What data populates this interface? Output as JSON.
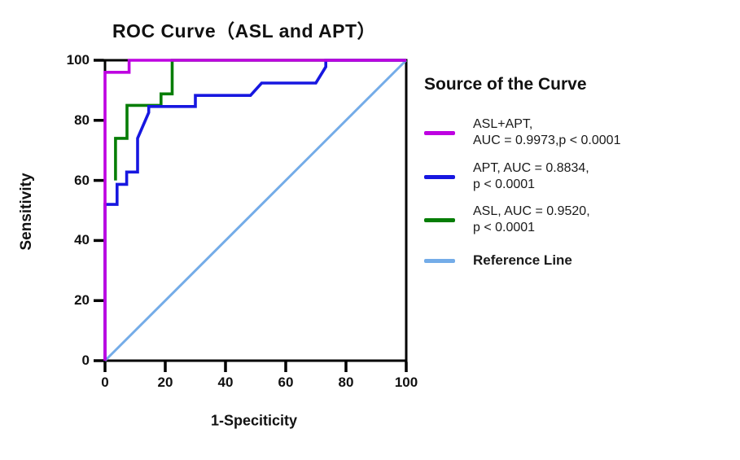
{
  "title": "ROC Curve（ASL and APT）",
  "axes": {
    "x_label": "1-Speciticity",
    "y_label": "Sensitivity"
  },
  "legend": {
    "title": "Source of the Curve",
    "items": [
      {
        "id": "asl-apt",
        "lines": [
          "ASL+APT,",
          "AUC = 0.9973,p < 0.0001"
        ],
        "color": "#BE00E1",
        "bold": false
      },
      {
        "id": "apt",
        "lines": [
          "APT, AUC = 0.8834,",
          "p < 0.0001"
        ],
        "color": "#1717E0",
        "bold": false
      },
      {
        "id": "asl",
        "lines": [
          "ASL, AUC = 0.9520,",
          "p < 0.0001"
        ],
        "color": "#067D06",
        "bold": false
      },
      {
        "id": "reference-line",
        "lines": [
          "Reference Line"
        ],
        "color": "#74ACE8",
        "bold": true
      }
    ]
  },
  "chart_data": {
    "type": "line",
    "title": "ROC Curve（ASL and APT）",
    "xlabel": "1-Speciticity",
    "ylabel": "Sensitivity",
    "xlim": [
      0,
      100
    ],
    "ylim": [
      0,
      100
    ],
    "x_ticks": [
      0,
      20,
      40,
      60,
      80,
      100
    ],
    "y_ticks": [
      0,
      20,
      40,
      60,
      80,
      100
    ],
    "grid": false,
    "legend_position": "right",
    "frame_color": "#000000",
    "series": [
      {
        "id": "reference-line",
        "name": "Reference Line",
        "color": "#74ACE8",
        "width": 3,
        "points": [
          [
            0,
            0
          ],
          [
            100,
            100
          ]
        ]
      },
      {
        "id": "asl-curve",
        "name": "ASL, AUC = 0.9520, p < 0.0001",
        "color": "#067D06",
        "width": 3.6,
        "points": [
          [
            3.5,
            60
          ],
          [
            3.5,
            74
          ],
          [
            7.3,
            74
          ],
          [
            7.3,
            85
          ],
          [
            18.6,
            85
          ],
          [
            18.6,
            88.8
          ],
          [
            22.3,
            88.8
          ],
          [
            22.3,
            100
          ],
          [
            100,
            100
          ]
        ]
      },
      {
        "id": "apt-curve",
        "name": "APT, AUC = 0.8834, p < 0.0001",
        "color": "#1717E0",
        "width": 3.6,
        "points": [
          [
            0,
            0
          ],
          [
            0,
            52
          ],
          [
            4,
            52
          ],
          [
            4,
            58.7
          ],
          [
            7.2,
            58.7
          ],
          [
            7.2,
            62.8
          ],
          [
            10.8,
            62.8
          ],
          [
            10.8,
            74
          ],
          [
            14.5,
            82.6
          ],
          [
            14.5,
            84.6
          ],
          [
            30,
            84.6
          ],
          [
            30,
            88.3
          ],
          [
            48.3,
            88.3
          ],
          [
            52,
            92.4
          ],
          [
            70,
            92.4
          ],
          [
            73.3,
            97.8
          ],
          [
            73.3,
            100
          ],
          [
            100,
            100
          ]
        ]
      },
      {
        "id": "asl-apt-curve",
        "name": "ASL+APT, AUC = 0.9973, p < 0.0001",
        "color": "#BE00E1",
        "width": 3.6,
        "points": [
          [
            0,
            0
          ],
          [
            0,
            96
          ],
          [
            8,
            96
          ],
          [
            8,
            100
          ],
          [
            100,
            100
          ]
        ]
      }
    ]
  }
}
